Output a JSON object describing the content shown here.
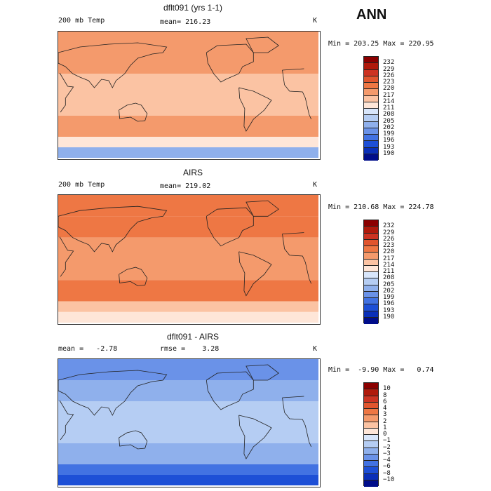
{
  "season": "ANN",
  "panels": [
    {
      "title": "dflt091 (yrs 1-1)",
      "left_label": "200 mb Temp",
      "center_label": "mean= 216.23",
      "unit": "K",
      "minmax": "Min = 203.25 Max = 220.95",
      "colorbar": {
        "labels": [
          "232",
          "229",
          "226",
          "223",
          "220",
          "217",
          "214",
          "211",
          "208",
          "205",
          "202",
          "199",
          "196",
          "193",
          "190"
        ],
        "colors": [
          "#8b0000",
          "#b01a0c",
          "#cc3322",
          "#e0552e",
          "#ee7744",
          "#f49a6c",
          "#fbc3a3",
          "#fee6d8",
          "#d8e6fb",
          "#b5cdf3",
          "#8fb0ec",
          "#6a92e8",
          "#4272e2",
          "#1d4fd6",
          "#0a2fb8",
          "#000d8a"
        ]
      }
    },
    {
      "title": "AIRS",
      "left_label": "200 mb Temp",
      "center_label": "mean= 219.02",
      "unit": "K",
      "minmax": "Min = 210.68 Max = 224.78",
      "colorbar": {
        "labels": [
          "232",
          "229",
          "226",
          "223",
          "220",
          "217",
          "214",
          "211",
          "208",
          "205",
          "202",
          "199",
          "196",
          "193",
          "190"
        ],
        "colors": [
          "#8b0000",
          "#b01a0c",
          "#cc3322",
          "#e0552e",
          "#ee7744",
          "#f49a6c",
          "#fbc3a3",
          "#fee6d8",
          "#d8e6fb",
          "#b5cdf3",
          "#8fb0ec",
          "#6a92e8",
          "#4272e2",
          "#1d4fd6",
          "#0a2fb8",
          "#000d8a"
        ]
      }
    },
    {
      "title": "dflt091 - AIRS",
      "left_label": "mean =   -2.78",
      "center_label": "rmse =    3.28",
      "unit": "K",
      "minmax": "Min =  -9.90 Max =   0.74",
      "colorbar": {
        "labels": [
          "10",
          "8",
          "6",
          "4",
          "3",
          "2",
          "1",
          "0",
          "−1",
          "−2",
          "−3",
          "−4",
          "−6",
          "−8",
          "−10"
        ],
        "colors": [
          "#8b0000",
          "#b01a0c",
          "#cc3322",
          "#e0552e",
          "#ee7744",
          "#f49a6c",
          "#fbc3a3",
          "#fee6d8",
          "#d8e6fb",
          "#b5cdf3",
          "#8fb0ec",
          "#6a92e8",
          "#4272e2",
          "#1d4fd6",
          "#0a2fb8",
          "#000d8a"
        ]
      }
    }
  ],
  "chart_data": [
    {
      "type": "heatmap",
      "title": "dflt091 (yrs 1-1)",
      "variable": "200 mb Temp",
      "units": "K",
      "mean": 216.23,
      "min": 203.25,
      "max": 220.95,
      "contour_levels": [
        190,
        193,
        196,
        199,
        202,
        205,
        208,
        211,
        214,
        217,
        220,
        223,
        226,
        229,
        232
      ],
      "zonal_bands": [
        {
          "lat_range": [
            60,
            90
          ],
          "value": 218
        },
        {
          "lat_range": [
            30,
            60
          ],
          "value": 219
        },
        {
          "lat_range": [
            -30,
            30
          ],
          "value": 216
        },
        {
          "lat_range": [
            -60,
            -30
          ],
          "value": 219
        },
        {
          "lat_range": [
            -75,
            -60
          ],
          "value": 211
        },
        {
          "lat_range": [
            -90,
            -75
          ],
          "value": 204
        }
      ]
    },
    {
      "type": "heatmap",
      "title": "AIRS",
      "variable": "200 mb Temp",
      "units": "K",
      "mean": 219.02,
      "min": 210.68,
      "max": 224.78,
      "contour_levels": [
        190,
        193,
        196,
        199,
        202,
        205,
        208,
        211,
        214,
        217,
        220,
        223,
        226,
        229,
        232
      ],
      "zonal_bands": [
        {
          "lat_range": [
            60,
            90
          ],
          "value": 222
        },
        {
          "lat_range": [
            30,
            60
          ],
          "value": 221
        },
        {
          "lat_range": [
            -30,
            30
          ],
          "value": 218
        },
        {
          "lat_range": [
            -60,
            -30
          ],
          "value": 220
        },
        {
          "lat_range": [
            -75,
            -60
          ],
          "value": 215
        },
        {
          "lat_range": [
            -90,
            -75
          ],
          "value": 212
        }
      ]
    },
    {
      "type": "heatmap",
      "title": "dflt091 - AIRS",
      "units": "K",
      "mean": -2.78,
      "rmse": 3.28,
      "min": -9.9,
      "max": 0.74,
      "contour_levels": [
        -10,
        -8,
        -6,
        -4,
        -3,
        -2,
        -1,
        0,
        1,
        2,
        3,
        4,
        6,
        8,
        10
      ],
      "zonal_bands": [
        {
          "lat_range": [
            60,
            90
          ],
          "value": -3.5
        },
        {
          "lat_range": [
            30,
            60
          ],
          "value": -2.5
        },
        {
          "lat_range": [
            -30,
            30
          ],
          "value": -1.5
        },
        {
          "lat_range": [
            -60,
            -30
          ],
          "value": -2.5
        },
        {
          "lat_range": [
            -75,
            -60
          ],
          "value": -4.5
        },
        {
          "lat_range": [
            -90,
            -75
          ],
          "value": -8.0
        }
      ]
    }
  ]
}
